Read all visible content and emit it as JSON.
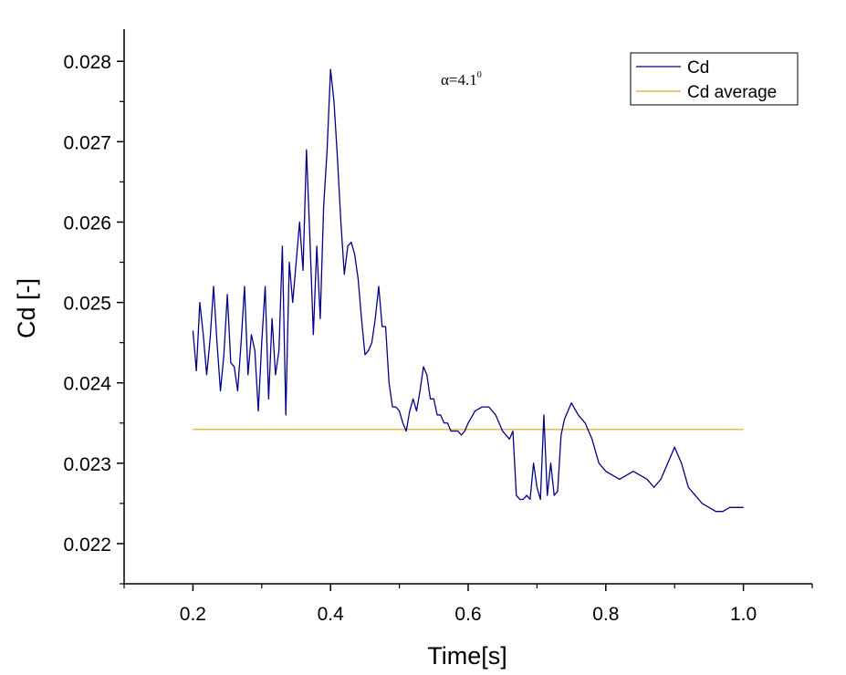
{
  "chart_data": {
    "type": "line",
    "title": "",
    "xlabel": "Time[s]",
    "ylabel": "Cd [-]",
    "xlim": [
      0.1,
      1.1
    ],
    "ylim": [
      0.0215,
      0.0284
    ],
    "xticks": [
      0.2,
      0.4,
      0.6,
      0.8,
      1.0
    ],
    "xtick_labels": [
      "0.2",
      "0.4",
      "0.6",
      "0.8",
      "1.0"
    ],
    "yticks": [
      0.022,
      0.023,
      0.024,
      0.025,
      0.026,
      0.027,
      0.028
    ],
    "ytick_labels": [
      "0.022",
      "0.023",
      "0.024",
      "0.025",
      "0.026",
      "0.027",
      "0.028"
    ],
    "annotation": {
      "base": "α=4.1",
      "sup": "0"
    },
    "legend_position": "top-right",
    "series": [
      {
        "name": "Cd",
        "color": "#00008b",
        "x": [
          0.2,
          0.205,
          0.21,
          0.215,
          0.22,
          0.225,
          0.23,
          0.235,
          0.24,
          0.245,
          0.25,
          0.255,
          0.26,
          0.265,
          0.27,
          0.275,
          0.28,
          0.285,
          0.29,
          0.295,
          0.3,
          0.305,
          0.31,
          0.315,
          0.32,
          0.325,
          0.33,
          0.335,
          0.34,
          0.345,
          0.35,
          0.355,
          0.36,
          0.365,
          0.37,
          0.375,
          0.38,
          0.385,
          0.39,
          0.395,
          0.4,
          0.405,
          0.41,
          0.415,
          0.42,
          0.425,
          0.43,
          0.435,
          0.44,
          0.445,
          0.45,
          0.455,
          0.46,
          0.465,
          0.47,
          0.475,
          0.48,
          0.485,
          0.49,
          0.495,
          0.5,
          0.505,
          0.51,
          0.515,
          0.52,
          0.525,
          0.53,
          0.535,
          0.54,
          0.545,
          0.55,
          0.555,
          0.56,
          0.565,
          0.57,
          0.575,
          0.58,
          0.585,
          0.59,
          0.595,
          0.6,
          0.61,
          0.62,
          0.63,
          0.64,
          0.65,
          0.66,
          0.665,
          0.67,
          0.675,
          0.68,
          0.685,
          0.69,
          0.695,
          0.7,
          0.705,
          0.71,
          0.715,
          0.72,
          0.725,
          0.73,
          0.735,
          0.74,
          0.75,
          0.76,
          0.77,
          0.78,
          0.79,
          0.8,
          0.81,
          0.82,
          0.83,
          0.84,
          0.85,
          0.86,
          0.87,
          0.88,
          0.89,
          0.9,
          0.91,
          0.92,
          0.93,
          0.94,
          0.95,
          0.96,
          0.97,
          0.98,
          0.99,
          1.0
        ],
        "y": [
          0.02465,
          0.02415,
          0.025,
          0.0246,
          0.0241,
          0.02455,
          0.0252,
          0.0245,
          0.0239,
          0.02435,
          0.0251,
          0.02425,
          0.0242,
          0.0239,
          0.0245,
          0.0252,
          0.0241,
          0.0246,
          0.0244,
          0.02365,
          0.0245,
          0.0252,
          0.0238,
          0.0248,
          0.0241,
          0.0244,
          0.0257,
          0.0236,
          0.0255,
          0.025,
          0.0255,
          0.026,
          0.0254,
          0.0269,
          0.0258,
          0.0246,
          0.0257,
          0.0248,
          0.0262,
          0.0269,
          0.0279,
          0.0275,
          0.0268,
          0.026,
          0.02535,
          0.0257,
          0.02575,
          0.0256,
          0.0253,
          0.0248,
          0.02435,
          0.0244,
          0.0245,
          0.0248,
          0.0252,
          0.0247,
          0.0247,
          0.024,
          0.0237,
          0.0237,
          0.02365,
          0.0235,
          0.0234,
          0.02365,
          0.0238,
          0.02365,
          0.0239,
          0.0242,
          0.0241,
          0.0238,
          0.0238,
          0.0236,
          0.0236,
          0.0235,
          0.0235,
          0.0234,
          0.0234,
          0.0234,
          0.02335,
          0.0234,
          0.0235,
          0.02365,
          0.0237,
          0.0237,
          0.0236,
          0.0234,
          0.0233,
          0.0234,
          0.0226,
          0.02255,
          0.02255,
          0.0226,
          0.02255,
          0.023,
          0.0227,
          0.02255,
          0.0236,
          0.0226,
          0.023,
          0.0226,
          0.02265,
          0.02335,
          0.02355,
          0.02375,
          0.0236,
          0.0235,
          0.0233,
          0.023,
          0.0229,
          0.02285,
          0.0228,
          0.02285,
          0.0229,
          0.02285,
          0.0228,
          0.0227,
          0.0228,
          0.023,
          0.0232,
          0.023,
          0.0227,
          0.0226,
          0.0225,
          0.02245,
          0.0224,
          0.0224,
          0.02245,
          0.02245,
          0.02245
        ]
      },
      {
        "name": "Cd average",
        "color": "#e6a11a",
        "x": [
          0.2,
          1.0
        ],
        "y": [
          0.02342,
          0.02342
        ]
      }
    ]
  }
}
